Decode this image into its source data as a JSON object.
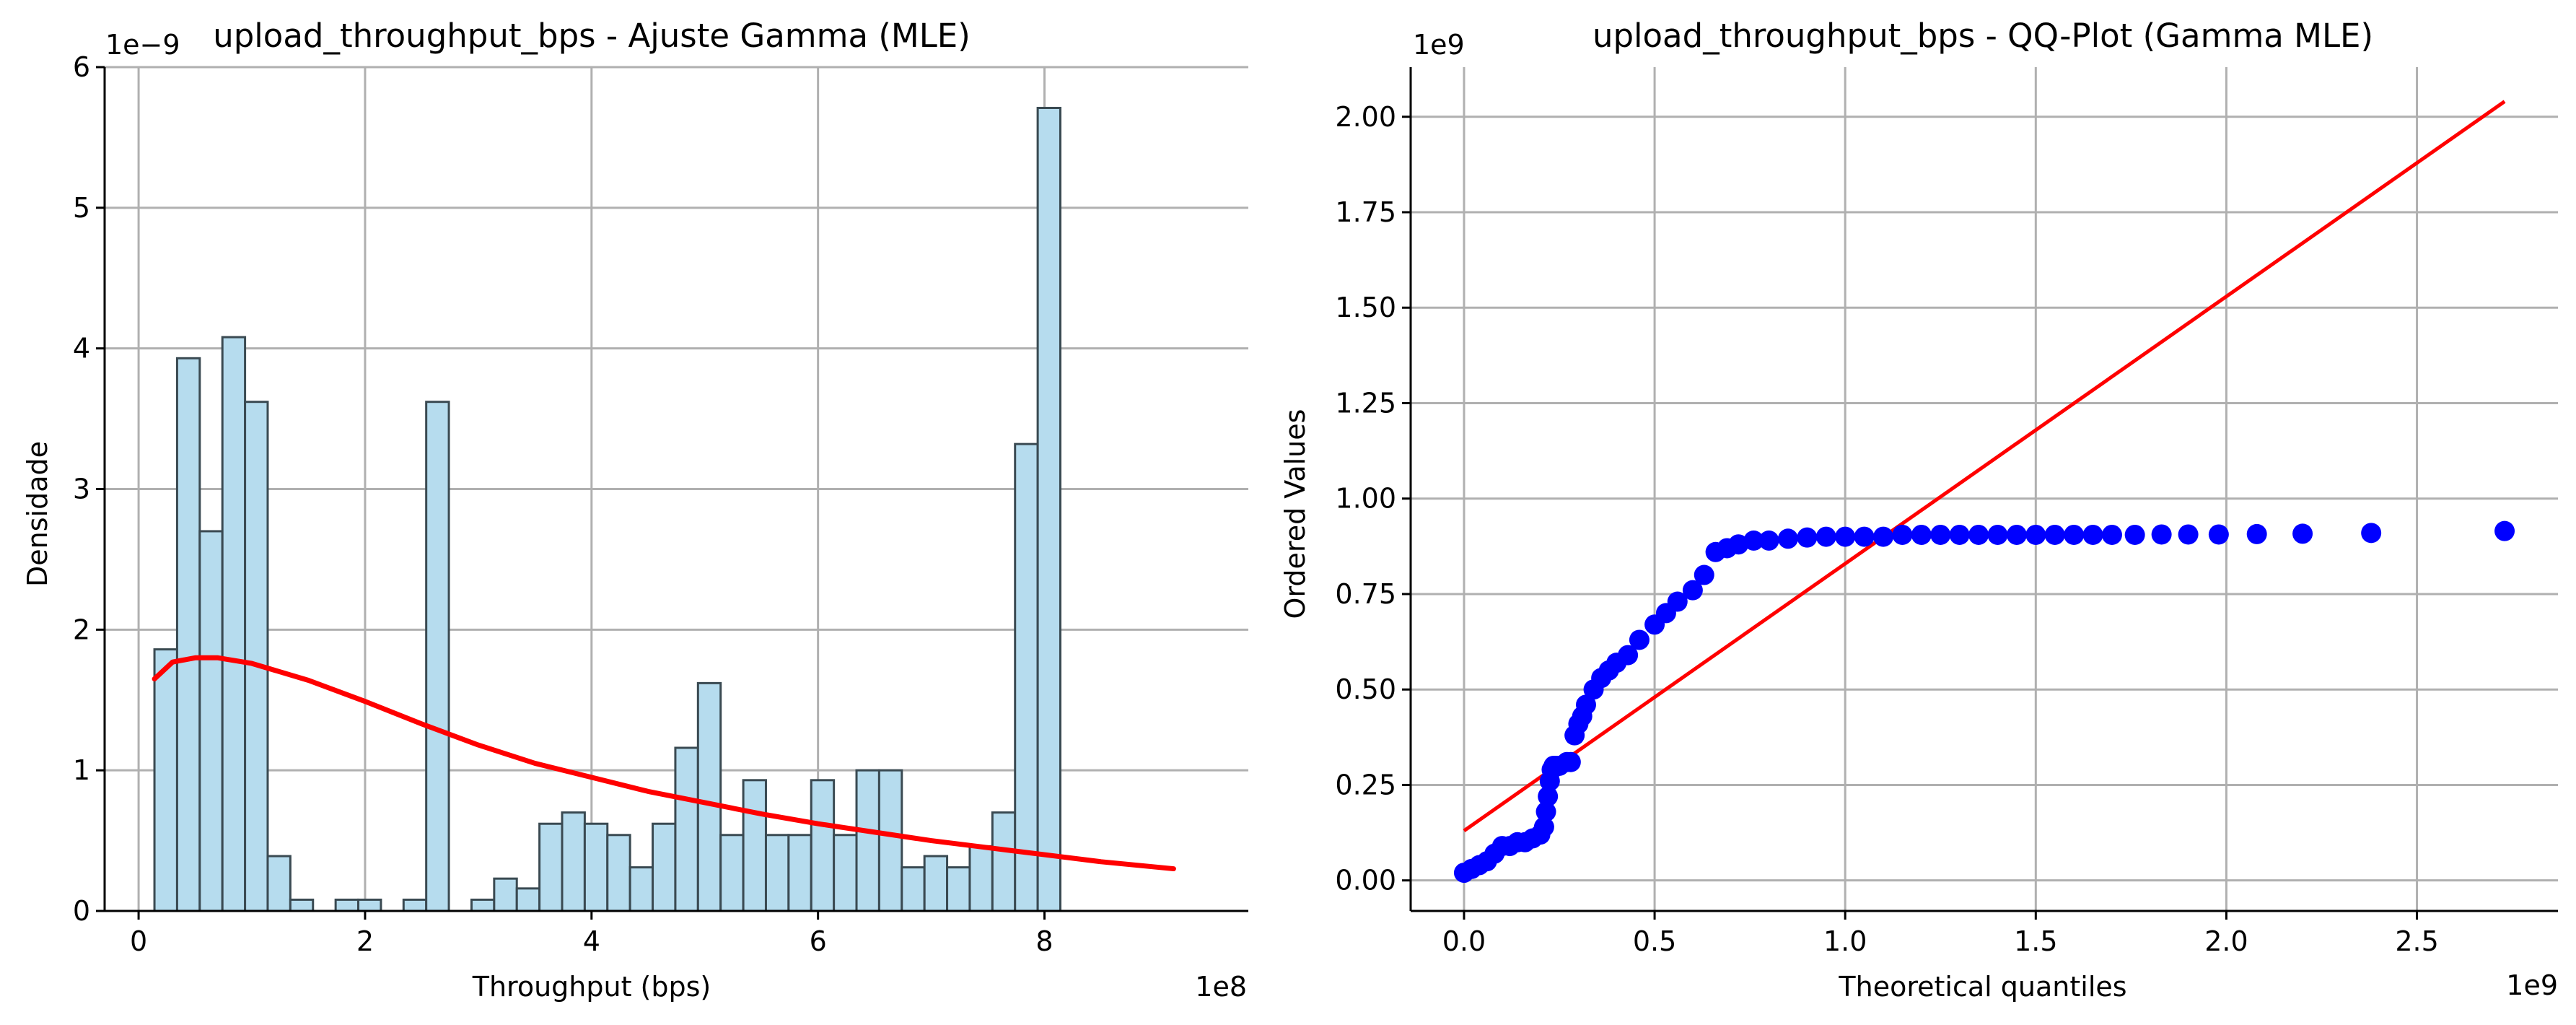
{
  "chart_data": [
    {
      "type": "bar",
      "subtype": "histogram-with-fit",
      "title": "upload_throughput_bps - Ajuste Gamma (MLE)",
      "xlabel": "Throughput (bps)",
      "ylabel": "Densidade",
      "x_offset_label": "1e8",
      "y_offset_label": "1e−9",
      "xlim": [
        -0.3,
        9.8
      ],
      "ylim": [
        0,
        6
      ],
      "x_ticks": [
        0,
        2,
        4,
        6,
        8
      ],
      "y_ticks": [
        0,
        1,
        2,
        3,
        4,
        5,
        6
      ],
      "x_tick_labels": [
        "0",
        "2",
        "4",
        "6",
        "8"
      ],
      "y_tick_labels": [
        "0",
        "1",
        "2",
        "3",
        "4",
        "5",
        "6"
      ],
      "grid": true,
      "bar_color": "#b6dcee",
      "bar_edge_color": "#3a4a52",
      "fit_color": "#ff0000",
      "bins_start": 0.14,
      "bin_width": 0.2,
      "bin_values": [
        1.86,
        3.93,
        2.7,
        4.08,
        3.62,
        0.39,
        0.08,
        0,
        0.08,
        0.08,
        0,
        0.08,
        3.62,
        0,
        0.08,
        0.23,
        0.16,
        0.62,
        0.7,
        0.62,
        0.54,
        0.31,
        0.62,
        1.16,
        1.62,
        0.54,
        0.93,
        0.54,
        0.54,
        0.93,
        0.54,
        1.0,
        1.0,
        0.31,
        0.39,
        0.31,
        0.46,
        0.7,
        3.32,
        5.71
      ],
      "fit_x": [
        0.14,
        0.3,
        0.5,
        0.7,
        1.0,
        1.5,
        2.0,
        2.5,
        3.0,
        3.5,
        4.0,
        4.5,
        5.0,
        5.5,
        6.0,
        6.5,
        7.0,
        7.5,
        8.0,
        8.5,
        9.14
      ],
      "fit_y": [
        1.65,
        1.77,
        1.8,
        1.8,
        1.76,
        1.64,
        1.49,
        1.33,
        1.18,
        1.05,
        0.95,
        0.85,
        0.77,
        0.69,
        0.62,
        0.56,
        0.5,
        0.45,
        0.4,
        0.35,
        0.3
      ]
    },
    {
      "type": "scatter",
      "subtype": "qq-plot",
      "title": "upload_throughput_bps - QQ-Plot (Gamma MLE)",
      "xlabel": "Theoretical quantiles",
      "ylabel": "Ordered Values",
      "x_offset_label": "1e9",
      "y_offset_label": "1e9",
      "xlim": [
        -0.14,
        2.87
      ],
      "ylim": [
        -0.08,
        2.13
      ],
      "x_ticks": [
        0,
        0.5,
        1.0,
        1.5,
        2.0,
        2.5
      ],
      "y_ticks": [
        0,
        0.25,
        0.5,
        0.75,
        1.0,
        1.25,
        1.5,
        1.75,
        2.0
      ],
      "x_tick_labels": [
        "0.0",
        "0.5",
        "1.0",
        "1.5",
        "2.0",
        "2.5"
      ],
      "y_tick_labels": [
        "0.00",
        "0.25",
        "0.50",
        "0.75",
        "1.00",
        "1.25",
        "1.50",
        "1.75",
        "2.00"
      ],
      "grid": true,
      "point_color": "#0000ff",
      "line_color": "#ff0000",
      "fit_line": {
        "x": [
          0,
          2.73
        ],
        "y": [
          0.13,
          2.04
        ]
      },
      "points": {
        "x": [
          0.0,
          0.02,
          0.04,
          0.06,
          0.08,
          0.1,
          0.12,
          0.14,
          0.16,
          0.18,
          0.2,
          0.21,
          0.215,
          0.22,
          0.225,
          0.23,
          0.235,
          0.24,
          0.25,
          0.27,
          0.28,
          0.29,
          0.3,
          0.31,
          0.32,
          0.34,
          0.36,
          0.38,
          0.4,
          0.43,
          0.46,
          0.5,
          0.53,
          0.56,
          0.6,
          0.63,
          0.66,
          0.69,
          0.72,
          0.76,
          0.8,
          0.85,
          0.9,
          0.95,
          1.0,
          1.05,
          1.1,
          1.15,
          1.2,
          1.25,
          1.3,
          1.35,
          1.4,
          1.45,
          1.5,
          1.55,
          1.6,
          1.65,
          1.7,
          1.76,
          1.83,
          1.9,
          1.98,
          2.08,
          2.2,
          2.38,
          2.73
        ],
        "y": [
          0.02,
          0.03,
          0.04,
          0.05,
          0.07,
          0.09,
          0.09,
          0.1,
          0.1,
          0.11,
          0.12,
          0.14,
          0.18,
          0.22,
          0.26,
          0.29,
          0.3,
          0.3,
          0.3,
          0.31,
          0.31,
          0.38,
          0.41,
          0.43,
          0.46,
          0.5,
          0.53,
          0.55,
          0.57,
          0.59,
          0.63,
          0.67,
          0.7,
          0.73,
          0.76,
          0.8,
          0.86,
          0.87,
          0.88,
          0.89,
          0.89,
          0.895,
          0.898,
          0.9,
          0.9,
          0.9,
          0.9,
          0.905,
          0.905,
          0.905,
          0.905,
          0.905,
          0.905,
          0.905,
          0.905,
          0.905,
          0.905,
          0.905,
          0.905,
          0.905,
          0.906,
          0.906,
          0.906,
          0.907,
          0.908,
          0.91,
          0.915
        ]
      }
    }
  ]
}
